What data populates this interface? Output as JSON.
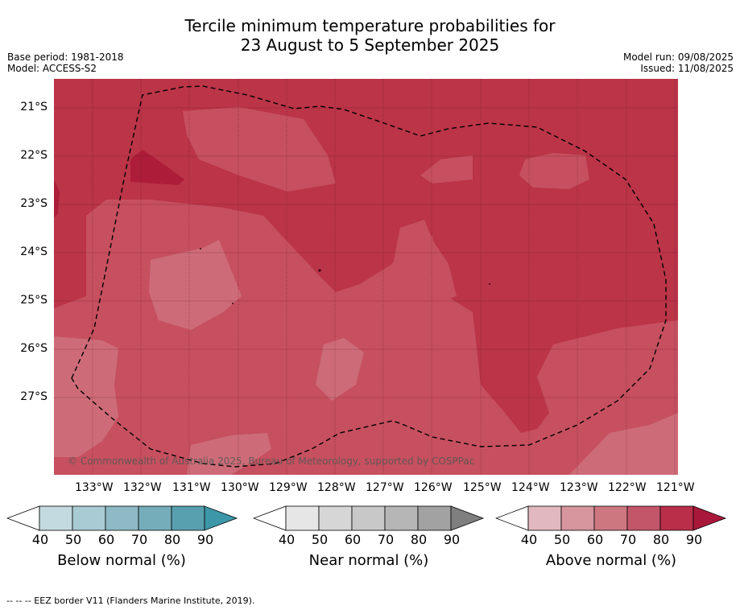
{
  "title": {
    "line1": "Tercile minimum temperature probabilities for",
    "line2": "23 August to 5 September 2025"
  },
  "meta": {
    "base_period": "Base period: 1981-2018",
    "model": "Model: ACCESS-S2",
    "model_run": "Model run: 09/08/2025",
    "issued": "Issued: 11/08/2025"
  },
  "map": {
    "copyright": "© Commonwealth of Australia 2025, Bureau of Meteorology, supported by COSPPac",
    "x_ticks": [
      "133°W",
      "132°W",
      "131°W",
      "130°W",
      "129°W",
      "128°W",
      "127°W",
      "126°W",
      "125°W",
      "124°W",
      "123°W",
      "122°W",
      "121°W"
    ],
    "y_ticks": [
      "21°S",
      "22°S",
      "23°S",
      "24°S",
      "25°S",
      "26°S",
      "27°S"
    ],
    "lon_range": [
      -133.8,
      -120.9
    ],
    "lat_range": [
      -20.4,
      -28.6
    ],
    "colors": {
      "above_80": "#bb3448",
      "above_70": "#c6505f",
      "above_60": "#cd6c78",
      "above_90": "#ad1d39"
    }
  },
  "colorbars": [
    {
      "label": "Below normal (%)",
      "ticks": [
        "40",
        "50",
        "60",
        "70",
        "80",
        "90"
      ],
      "colors": [
        "#c3dae0",
        "#a9cbd3",
        "#8ebac5",
        "#76adba",
        "#58a0af"
      ],
      "extend_color": "#3c97a9"
    },
    {
      "label": "Near normal (%)",
      "ticks": [
        "40",
        "50",
        "60",
        "70",
        "80",
        "90"
      ],
      "colors": [
        "#e6e6e6",
        "#d6d6d6",
        "#c8c8c8",
        "#b6b6b6",
        "#a2a2a2"
      ],
      "extend_color": "#7f7f7f"
    },
    {
      "label": "Above normal (%)",
      "ticks": [
        "40",
        "50",
        "60",
        "70",
        "80",
        "90"
      ],
      "colors": [
        "#e1b8bf",
        "#d7959e",
        "#cd7780",
        "#c4566a",
        "#b92f4a"
      ],
      "extend_color": "#a9183a"
    }
  ],
  "footer": "--  --  -- EEZ border V11 (Flanders Marine Institute, 2019)."
}
